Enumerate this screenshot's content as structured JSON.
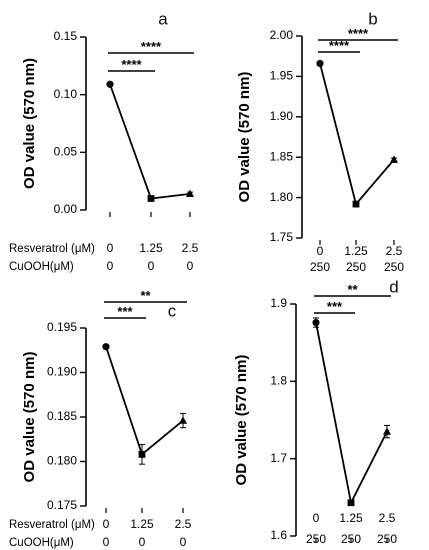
{
  "chart_data": [
    {
      "panel": "a",
      "type": "line",
      "ylabel": "OD value (570 nm)",
      "ylim": [
        0,
        0.15
      ],
      "yticks": [
        "0.00",
        "0.05",
        "0.10",
        "0.15"
      ],
      "tick_values": [
        0,
        0.05,
        0.1,
        0.15
      ],
      "row_labels": [
        "Resveratrol (μM)",
        "CuOOH(μM)"
      ],
      "x_row1": [
        "0",
        "1.25",
        "2.5"
      ],
      "x_row2": [
        "0",
        "0",
        "0"
      ],
      "values": [
        0.109,
        0.01,
        0.014
      ],
      "errors": [
        0.0008,
        0.0015,
        0.0015
      ],
      "markers": [
        "circle",
        "square",
        "triangle"
      ],
      "significance": [
        {
          "from": 0,
          "to": 1,
          "label": "****"
        },
        {
          "from": 0,
          "to": 2,
          "label": "****"
        }
      ]
    },
    {
      "panel": "b",
      "type": "line",
      "ylabel": "OD value (570 nm)",
      "ylim": [
        1.75,
        2.0
      ],
      "yticks": [
        "1.75",
        "1.80",
        "1.85",
        "1.90",
        "1.95",
        "2.00"
      ],
      "tick_values": [
        1.75,
        1.8,
        1.85,
        1.9,
        1.95,
        2.0
      ],
      "x_row1": [
        "0",
        "1.25",
        "2.5"
      ],
      "x_row2": [
        "250",
        "250",
        "250"
      ],
      "values": [
        1.966,
        1.792,
        1.847
      ],
      "errors": [
        0.002,
        0.002,
        0.002
      ],
      "markers": [
        "circle",
        "square",
        "triangle"
      ],
      "significance": [
        {
          "from": 0,
          "to": 1,
          "label": "****"
        },
        {
          "from": 0,
          "to": 2,
          "label": "****"
        }
      ]
    },
    {
      "panel": "c",
      "type": "line",
      "ylabel": "OD value (570 nm)",
      "ylim": [
        0.175,
        0.195
      ],
      "yticks": [
        "0.175",
        "0.180",
        "0.185",
        "0.190",
        "0.195"
      ],
      "tick_values": [
        0.175,
        0.18,
        0.185,
        0.19,
        0.195
      ],
      "row_labels": [
        "Resveratrol (μM)",
        "CuOOH(μM)"
      ],
      "x_row1": [
        "0",
        "1.25",
        "2.5"
      ],
      "x_row2": [
        "0",
        "0",
        "0"
      ],
      "values": [
        0.1929,
        0.1808,
        0.1846
      ],
      "errors": [
        0.0001,
        0.0011,
        0.0008
      ],
      "markers": [
        "circle",
        "square",
        "triangle"
      ],
      "significance": [
        {
          "from": 0,
          "to": 1,
          "label": "***"
        },
        {
          "from": 0,
          "to": 2,
          "label": "**"
        }
      ]
    },
    {
      "panel": "d",
      "type": "line",
      "ylabel": "OD value (570 nm)",
      "ylim": [
        1.6,
        1.9
      ],
      "yticks": [
        "1.6",
        "1.7",
        "1.8",
        "1.9"
      ],
      "tick_values": [
        1.6,
        1.7,
        1.8,
        1.9
      ],
      "x_row1": [
        "0",
        "1.25",
        "2.5"
      ],
      "x_row2": [
        "250",
        "250",
        "250"
      ],
      "values": [
        1.876,
        1.643,
        1.735
      ],
      "errors": [
        0.006,
        0.002,
        0.008
      ],
      "markers": [
        "circle",
        "square",
        "triangle"
      ],
      "significance": [
        {
          "from": 0,
          "to": 1,
          "label": "***"
        },
        {
          "from": 0,
          "to": 2,
          "label": "**"
        }
      ]
    }
  ]
}
